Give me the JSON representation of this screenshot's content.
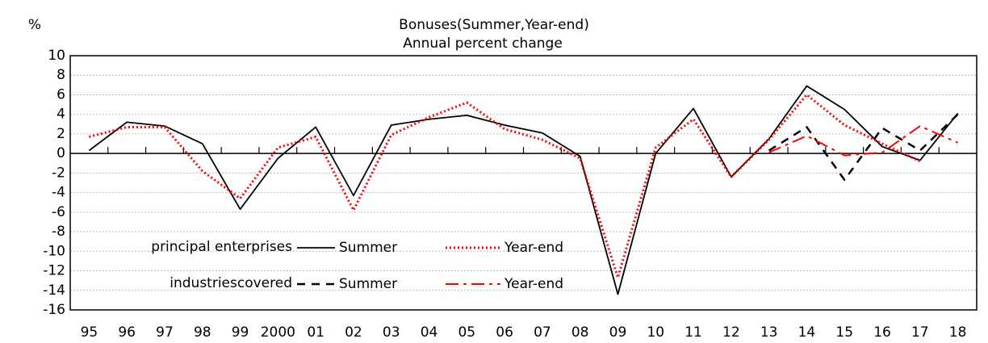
{
  "chart_data": {
    "type": "line",
    "title": "Bonuses(Summer,Year-end)",
    "subtitle": "Annual percent change",
    "y_unit": "%",
    "categories": [
      "95",
      "96",
      "97",
      "98",
      "99",
      "2000",
      "01",
      "02",
      "03",
      "04",
      "05",
      "06",
      "07",
      "08",
      "09",
      "10",
      "11",
      "12",
      "13",
      "14",
      "15",
      "16",
      "17",
      "18"
    ],
    "legend_groups": [
      "principal enterprises",
      "industriescovered"
    ],
    "series": [
      {
        "name": "Summer",
        "color": "#000000",
        "dash": "solid",
        "values": [
          0.3,
          3.2,
          2.8,
          1.0,
          -5.7,
          -0.5,
          2.7,
          -4.3,
          2.9,
          3.5,
          3.9,
          2.9,
          2.1,
          -0.3,
          -14.4,
          0.0,
          4.6,
          -2.4,
          1.5,
          6.9,
          4.5,
          0.7,
          -0.7,
          4.1
        ]
      },
      {
        "name": "Year-end",
        "color": "#ff0000",
        "dash": "dotted",
        "values": [
          1.7,
          2.7,
          2.7,
          -1.8,
          -4.6,
          0.6,
          1.7,
          -5.8,
          1.9,
          3.7,
          5.2,
          2.5,
          1.4,
          -0.5,
          -12.7,
          0.6,
          3.5,
          -2.4,
          1.4,
          6.0,
          2.9,
          1.0,
          -0.8,
          null
        ]
      },
      {
        "name": "Summer",
        "color": "#000000",
        "dash": "dashed",
        "values": [
          null,
          null,
          null,
          null,
          null,
          null,
          null,
          null,
          null,
          null,
          null,
          null,
          null,
          null,
          null,
          null,
          null,
          null,
          0.3,
          2.7,
          -2.7,
          2.6,
          0.3,
          4.0
        ]
      },
      {
        "name": "Year-end",
        "color": "#ff0000",
        "dash": "dashdot",
        "values": [
          null,
          null,
          null,
          null,
          null,
          null,
          null,
          null,
          null,
          null,
          null,
          null,
          null,
          null,
          null,
          null,
          null,
          null,
          0.1,
          1.8,
          -0.2,
          0.1,
          2.8,
          1.1
        ]
      }
    ],
    "ylim": [
      -16,
      10
    ],
    "yticks": [
      -16,
      -14,
      -12,
      -10,
      -8,
      -6,
      -4,
      -2,
      0,
      2,
      4,
      6,
      8,
      10
    ],
    "grid": true
  }
}
